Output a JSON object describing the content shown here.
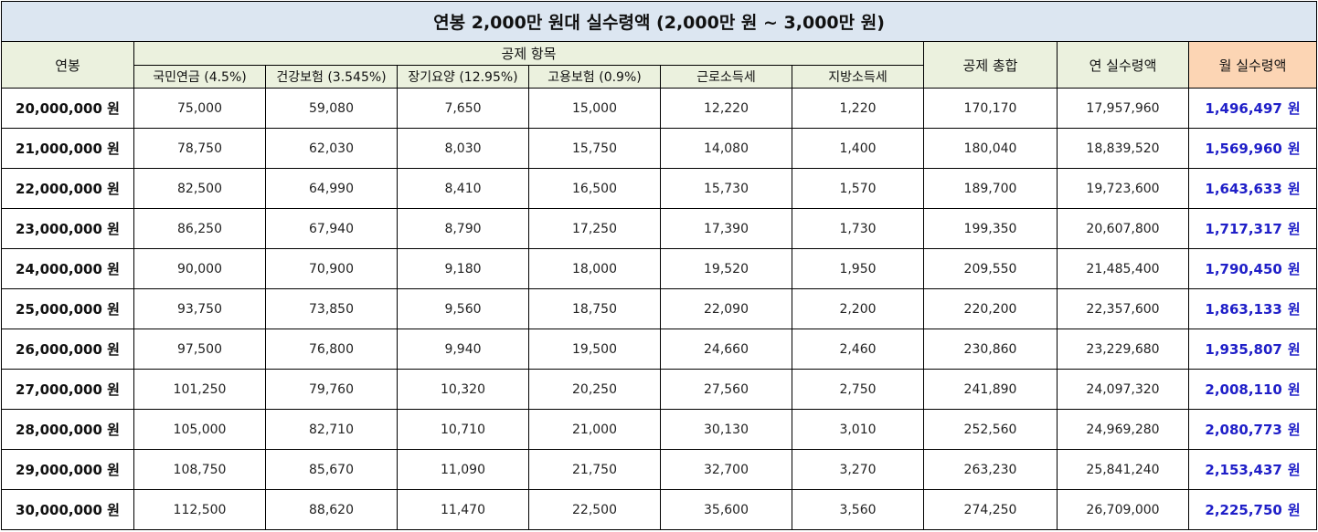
{
  "title": "연봉 2,000만 원대 실수령액 (2,000만 원 ~ 3,000만 원)",
  "headers": {
    "salary": "연봉",
    "deduction_group": "공제 항목",
    "deduction_items": [
      "국민연금 (4.5%)",
      "건강보험 (3.545%)",
      "장기요양 (12.95%)",
      "고용보험 (0.9%)",
      "근로소득세",
      "지방소득세"
    ],
    "total_deduction": "공제 총합",
    "annual_net": "연 실수령액",
    "monthly_net": "월 실수령액"
  },
  "unit": "원",
  "rows": [
    {
      "salary": "20,000,000 원",
      "pension": "75,000",
      "health": "59,080",
      "longterm": "7,650",
      "employment": "15,000",
      "income_tax": "12,220",
      "local_tax": "1,220",
      "total": "170,170",
      "annual_net": "17,957,960",
      "monthly_net": "1,496,497"
    },
    {
      "salary": "21,000,000 원",
      "pension": "78,750",
      "health": "62,030",
      "longterm": "8,030",
      "employment": "15,750",
      "income_tax": "14,080",
      "local_tax": "1,400",
      "total": "180,040",
      "annual_net": "18,839,520",
      "monthly_net": "1,569,960"
    },
    {
      "salary": "22,000,000 원",
      "pension": "82,500",
      "health": "64,990",
      "longterm": "8,410",
      "employment": "16,500",
      "income_tax": "15,730",
      "local_tax": "1,570",
      "total": "189,700",
      "annual_net": "19,723,600",
      "monthly_net": "1,643,633"
    },
    {
      "salary": "23,000,000 원",
      "pension": "86,250",
      "health": "67,940",
      "longterm": "8,790",
      "employment": "17,250",
      "income_tax": "17,390",
      "local_tax": "1,730",
      "total": "199,350",
      "annual_net": "20,607,800",
      "monthly_net": "1,717,317"
    },
    {
      "salary": "24,000,000 원",
      "pension": "90,000",
      "health": "70,900",
      "longterm": "9,180",
      "employment": "18,000",
      "income_tax": "19,520",
      "local_tax": "1,950",
      "total": "209,550",
      "annual_net": "21,485,400",
      "monthly_net": "1,790,450"
    },
    {
      "salary": "25,000,000 원",
      "pension": "93,750",
      "health": "73,850",
      "longterm": "9,560",
      "employment": "18,750",
      "income_tax": "22,090",
      "local_tax": "2,200",
      "total": "220,200",
      "annual_net": "22,357,600",
      "monthly_net": "1,863,133"
    },
    {
      "salary": "26,000,000 원",
      "pension": "97,500",
      "health": "76,800",
      "longterm": "9,940",
      "employment": "19,500",
      "income_tax": "24,660",
      "local_tax": "2,460",
      "total": "230,860",
      "annual_net": "23,229,680",
      "monthly_net": "1,935,807"
    },
    {
      "salary": "27,000,000 원",
      "pension": "101,250",
      "health": "79,760",
      "longterm": "10,320",
      "employment": "20,250",
      "income_tax": "27,560",
      "local_tax": "2,750",
      "total": "241,890",
      "annual_net": "24,097,320",
      "monthly_net": "2,008,110"
    },
    {
      "salary": "28,000,000 원",
      "pension": "105,000",
      "health": "82,710",
      "longterm": "10,710",
      "employment": "21,000",
      "income_tax": "30,130",
      "local_tax": "3,010",
      "total": "252,560",
      "annual_net": "24,969,280",
      "monthly_net": "2,080,773"
    },
    {
      "salary": "29,000,000 원",
      "pension": "108,750",
      "health": "85,670",
      "longterm": "11,090",
      "employment": "21,750",
      "income_tax": "32,700",
      "local_tax": "3,270",
      "total": "263,230",
      "annual_net": "25,841,240",
      "monthly_net": "2,153,437"
    },
    {
      "salary": "30,000,000 원",
      "pension": "112,500",
      "health": "88,620",
      "longterm": "11,470",
      "employment": "22,500",
      "income_tax": "35,600",
      "local_tax": "3,560",
      "total": "274,250",
      "annual_net": "26,709,000",
      "monthly_net": "2,225,750"
    }
  ],
  "colors": {
    "title_bg": "#dce6f1",
    "header_bg": "#ebf1de",
    "monthly_header_bg": "#fcd5b4",
    "monthly_text": "#1f1fc8"
  }
}
